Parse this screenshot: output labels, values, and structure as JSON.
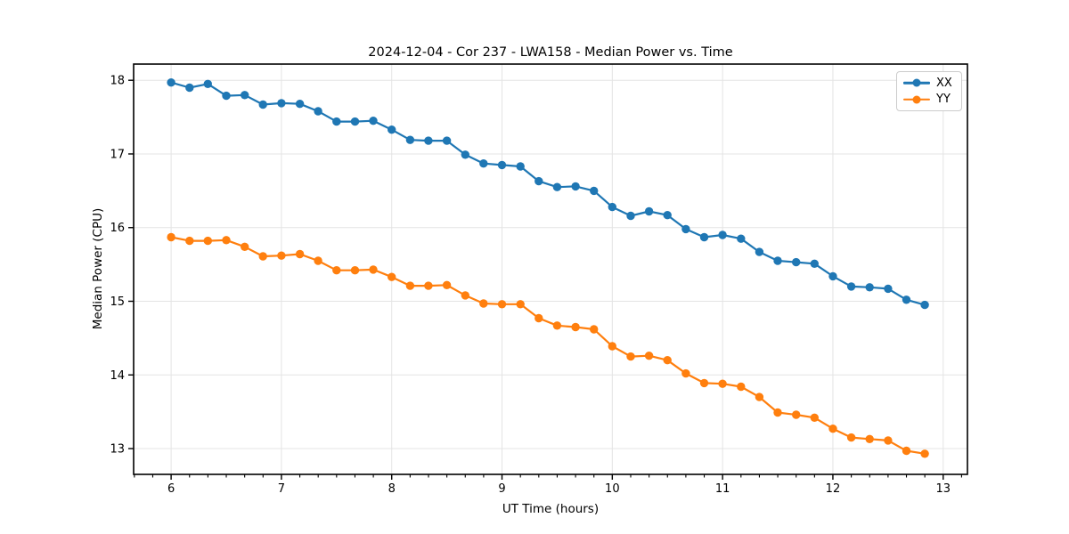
{
  "figure": {
    "title": "2024-12-04 - Cor 237 - LWA158 - Median Power vs. Time",
    "xlabel": "UT Time (hours)",
    "ylabel": "Median Power (CPU)"
  },
  "legend": {
    "items": [
      {
        "label": "XX",
        "color": "#1f77b4"
      },
      {
        "label": "YY",
        "color": "#ff7f0e"
      }
    ]
  },
  "chart_data": {
    "type": "line",
    "title": "2024-12-04 - Cor 237 - LWA158 - Median Power vs. Time",
    "xlabel": "UT Time (hours)",
    "ylabel": "Median Power (CPU)",
    "grid": true,
    "grid_color": "#e4e4e4",
    "legend_position": "upper right",
    "x_ticks": [
      6,
      7,
      8,
      9,
      10,
      11,
      12,
      13
    ],
    "y_ticks": [
      13,
      14,
      15,
      16,
      17,
      18
    ],
    "x_minor_tick_step": 0.16667,
    "xlim": [
      5.66,
      13.22
    ],
    "ylim": [
      12.65,
      18.22
    ],
    "x": [
      6.0,
      6.167,
      6.333,
      6.5,
      6.667,
      6.833,
      7.0,
      7.167,
      7.333,
      7.5,
      7.667,
      7.833,
      8.0,
      8.167,
      8.333,
      8.5,
      8.667,
      8.833,
      9.0,
      9.167,
      9.333,
      9.5,
      9.667,
      9.833,
      10.0,
      10.167,
      10.333,
      10.5,
      10.667,
      10.833,
      11.0,
      11.167,
      11.333,
      11.5,
      11.667,
      11.833,
      12.0,
      12.167,
      12.333,
      12.5,
      12.667,
      12.833
    ],
    "series": [
      {
        "name": "XX",
        "color": "#1f77b4",
        "marker": "circle",
        "values": [
          17.97,
          17.9,
          17.95,
          17.79,
          17.8,
          17.67,
          17.69,
          17.68,
          17.58,
          17.44,
          17.44,
          17.45,
          17.33,
          17.19,
          17.18,
          17.18,
          16.99,
          16.87,
          16.85,
          16.83,
          16.63,
          16.55,
          16.56,
          16.5,
          16.28,
          16.16,
          16.22,
          16.17,
          15.98,
          15.87,
          15.9,
          15.85,
          15.67,
          15.55,
          15.53,
          15.51,
          15.34,
          15.2,
          15.19,
          15.17,
          15.02,
          14.95
        ]
      },
      {
        "name": "YY",
        "color": "#ff7f0e",
        "marker": "circle",
        "values": [
          15.87,
          15.82,
          15.82,
          15.83,
          15.74,
          15.61,
          15.62,
          15.64,
          15.55,
          15.42,
          15.42,
          15.43,
          15.33,
          15.21,
          15.21,
          15.22,
          15.08,
          14.97,
          14.96,
          14.96,
          14.77,
          14.67,
          14.65,
          14.62,
          14.39,
          14.25,
          14.26,
          14.2,
          14.02,
          13.89,
          13.88,
          13.84,
          13.7,
          13.49,
          13.46,
          13.42,
          13.27,
          13.15,
          13.13,
          13.11,
          12.97,
          12.93
        ]
      }
    ]
  }
}
